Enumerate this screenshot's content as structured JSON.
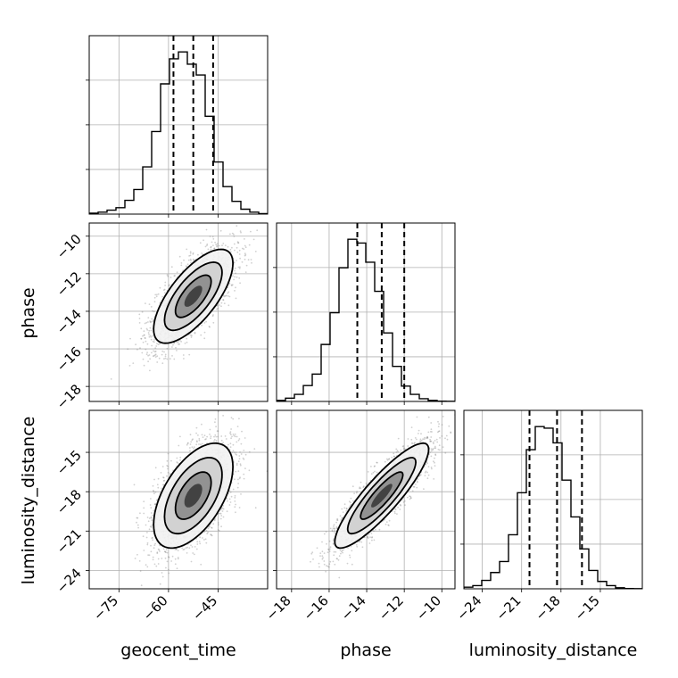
{
  "chart_data": {
    "type": "corner",
    "parameters": [
      "geocent_time",
      "phase",
      "luminosity_distance"
    ],
    "labels": {
      "geocent_time": "geocent_time",
      "phase": "phase",
      "luminosity_distance": "luminosity_distance"
    },
    "ranges": {
      "geocent_time": [
        -84,
        -30
      ],
      "phase": [
        -18.8,
        -9.3
      ],
      "luminosity_distance": [
        -25.4,
        -11.8
      ]
    },
    "ticks": {
      "geocent_time": {
        "values": [
          -75,
          -60,
          -45
        ],
        "labels": [
          "−75",
          "−60",
          "−45"
        ]
      },
      "phase": {
        "values": [
          -18,
          -16,
          -14,
          -12,
          -10
        ],
        "labels": [
          "−18",
          "−16",
          "−14",
          "−12",
          "−10"
        ]
      },
      "luminosity_distance": {
        "values": [
          -24,
          -21,
          -18,
          -15
        ],
        "labels": [
          "−24",
          "−21",
          "−18",
          "−15"
        ]
      }
    },
    "quantiles": {
      "geocent_time": [
        -58.5,
        -52.5,
        -46.5
      ],
      "phase": [
        -14.5,
        -13.2,
        -12.0
      ],
      "luminosity_distance": [
        -20.4,
        -18.3,
        -16.4
      ]
    },
    "histograms": {
      "geocent_time": {
        "bins": 20,
        "counts": [
          0.2,
          0.4,
          0.8,
          1.3,
          2.8,
          5.0,
          9.6,
          16.8,
          26.5,
          31.6,
          33.0,
          30.5,
          28.3,
          19.9,
          10.6,
          5.6,
          2.6,
          1.0,
          0.4,
          0.1
        ]
      },
      "phase": {
        "bins": 20,
        "counts": [
          0.2,
          0.6,
          1.3,
          2.9,
          5.0,
          10.4,
          16.2,
          24.4,
          29.6,
          28.9,
          25.4,
          20.1,
          12.5,
          6.4,
          2.8,
          1.3,
          0.5,
          0.2,
          0.05,
          0.02
        ]
      },
      "luminosity_distance": {
        "bins": 20,
        "counts": [
          0.3,
          0.6,
          1.6,
          3.1,
          5.2,
          10.3,
          18.3,
          26.5,
          30.9,
          30.6,
          27.8,
          20.7,
          13.7,
          7.6,
          3.5,
          1.4,
          0.6,
          0.2,
          0.05,
          0.02
        ]
      }
    },
    "grid": true,
    "contours": true,
    "density_points": true
  }
}
